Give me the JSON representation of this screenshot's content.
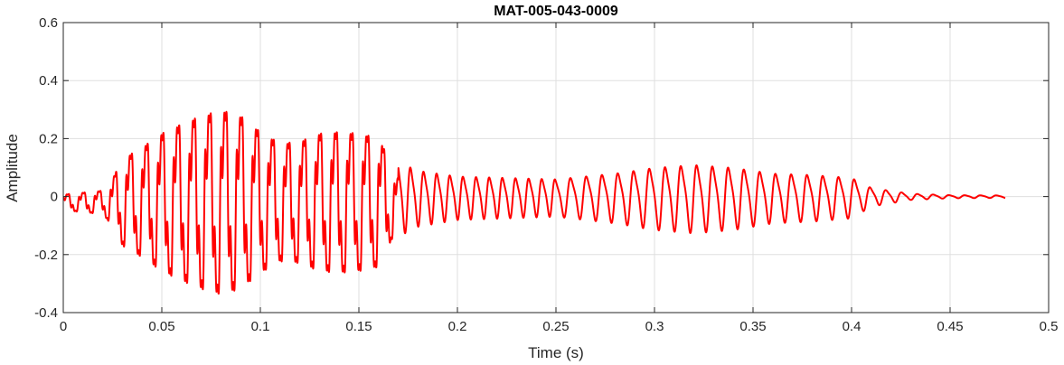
{
  "chart_data": {
    "type": "line",
    "title": "MAT-005-043-0009",
    "xlabel": "Time (s)",
    "ylabel": "Amplitude",
    "xlim": [
      0,
      0.5
    ],
    "ylim": [
      -0.4,
      0.6
    ],
    "x_ticks": [
      0,
      0.05,
      0.1,
      0.15,
      0.2,
      0.25,
      0.3,
      0.35,
      0.4,
      0.45,
      0.5
    ],
    "x_tick_labels": [
      "0",
      "0.05",
      "0.1",
      "0.15",
      "0.2",
      "0.25",
      "0.3",
      "0.35",
      "0.4",
      "0.45",
      "0.5"
    ],
    "y_ticks": [
      -0.4,
      -0.2,
      0,
      0.2,
      0.4,
      0.6
    ],
    "y_tick_labels": [
      "-0.4",
      "-0.2",
      "0",
      "0.2",
      "0.4",
      "0.6"
    ],
    "grid": true,
    "series": [
      {
        "color": "#ff0000",
        "duration": 0.478,
        "envelope": [
          [
            0.0,
            0.04
          ],
          [
            0.02,
            0.06
          ],
          [
            0.025,
            0.12
          ],
          [
            0.03,
            0.22
          ],
          [
            0.04,
            0.28
          ],
          [
            0.05,
            0.35
          ],
          [
            0.06,
            0.4
          ],
          [
            0.07,
            0.44
          ],
          [
            0.08,
            0.47
          ],
          [
            0.09,
            0.44
          ],
          [
            0.1,
            0.36
          ],
          [
            0.11,
            0.3
          ],
          [
            0.12,
            0.31
          ],
          [
            0.13,
            0.35
          ],
          [
            0.14,
            0.36
          ],
          [
            0.15,
            0.35
          ],
          [
            0.16,
            0.33
          ],
          [
            0.17,
            0.12
          ],
          [
            0.18,
            0.09
          ],
          [
            0.2,
            0.07
          ],
          [
            0.25,
            0.06
          ],
          [
            0.28,
            0.08
          ],
          [
            0.3,
            0.1
          ],
          [
            0.32,
            0.11
          ],
          [
            0.34,
            0.1
          ],
          [
            0.36,
            0.08
          ],
          [
            0.38,
            0.075
          ],
          [
            0.4,
            0.065
          ],
          [
            0.41,
            0.03
          ],
          [
            0.42,
            0.02
          ],
          [
            0.43,
            0.01
          ],
          [
            0.45,
            0.005
          ],
          [
            0.478,
            0.004
          ]
        ]
      }
    ]
  }
}
